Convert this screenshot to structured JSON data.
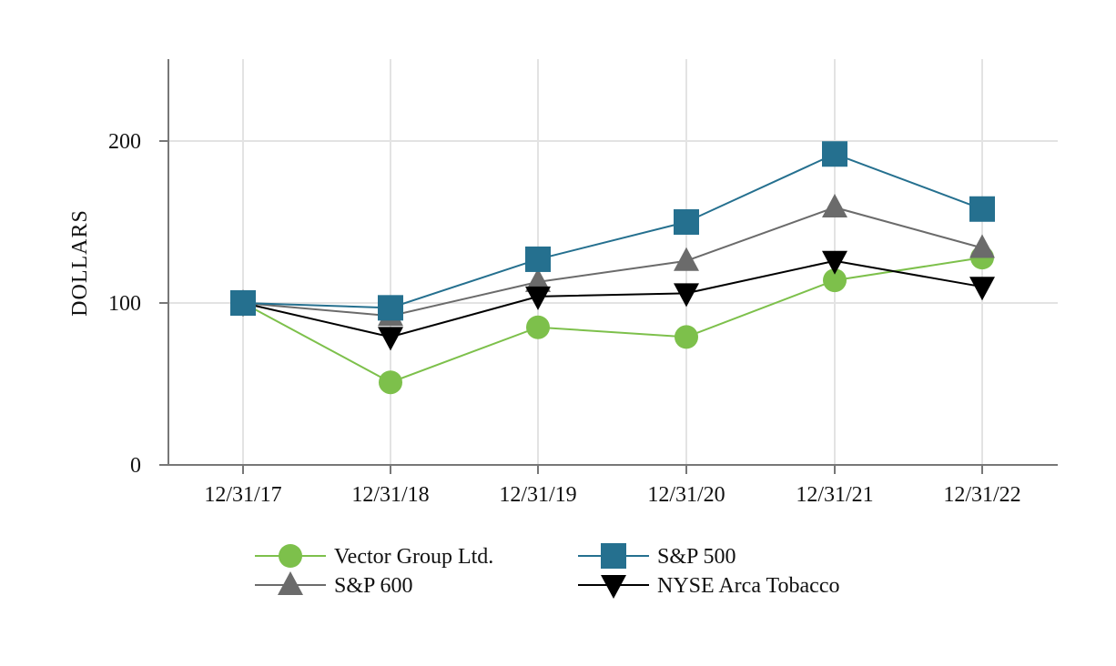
{
  "chart_data": {
    "type": "line",
    "title": "",
    "xlabel": "",
    "ylabel": "DOLLARS",
    "categories": [
      "12/31/17",
      "12/31/18",
      "12/31/19",
      "12/31/20",
      "12/31/21",
      "12/31/22"
    ],
    "ylim": [
      0,
      250
    ],
    "yticks": [
      0,
      100,
      200
    ],
    "grid": true,
    "series": [
      {
        "name": "Vector Group Ltd.",
        "values": [
          100,
          51,
          85,
          79,
          114,
          128
        ],
        "color": "#7dc04b",
        "marker": "circle"
      },
      {
        "name": "S&P 500",
        "values": [
          100,
          97,
          127,
          150,
          192,
          158
        ],
        "color": "#25708f",
        "marker": "square"
      },
      {
        "name": "S&P 600",
        "values": [
          100,
          92,
          113,
          126,
          159,
          134
        ],
        "color": "#6b6b6b",
        "marker": "triangle-up"
      },
      {
        "name": "NYSE Arca Tobacco",
        "values": [
          100,
          79,
          104,
          106,
          126,
          110
        ],
        "color": "#000000",
        "marker": "triangle-down"
      }
    ]
  }
}
